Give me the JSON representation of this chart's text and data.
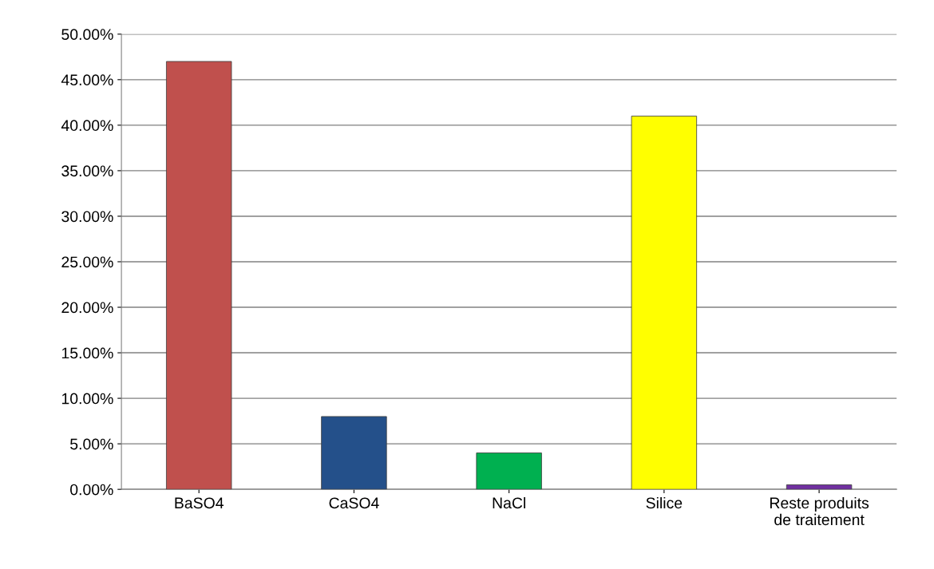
{
  "chart_data": {
    "type": "bar",
    "categories": [
      "BaSO4",
      "CaSO4",
      "NaCl",
      "Silice",
      "Reste produits\nde traitement"
    ],
    "values": [
      47,
      8,
      4,
      41,
      0.5
    ],
    "colors": [
      "#c0504d",
      "#24508a",
      "#00b050",
      "#ffff00",
      "#7030a0"
    ],
    "ylim": [
      0,
      50
    ],
    "yticks": [
      {
        "value": 0,
        "label": "0.00%"
      },
      {
        "value": 5,
        "label": "5.00%"
      },
      {
        "value": 10,
        "label": "10.00%"
      },
      {
        "value": 15,
        "label": "15.00%"
      },
      {
        "value": 20,
        "label": "20.00%"
      },
      {
        "value": 25,
        "label": "25.00%"
      },
      {
        "value": 30,
        "label": "30.00%"
      },
      {
        "value": 35,
        "label": "35.00%"
      },
      {
        "value": 40,
        "label": "40.00%"
      },
      {
        "value": 45,
        "label": "45.00%"
      },
      {
        "value": 50,
        "label": "50.00%"
      }
    ],
    "grid": "y"
  }
}
